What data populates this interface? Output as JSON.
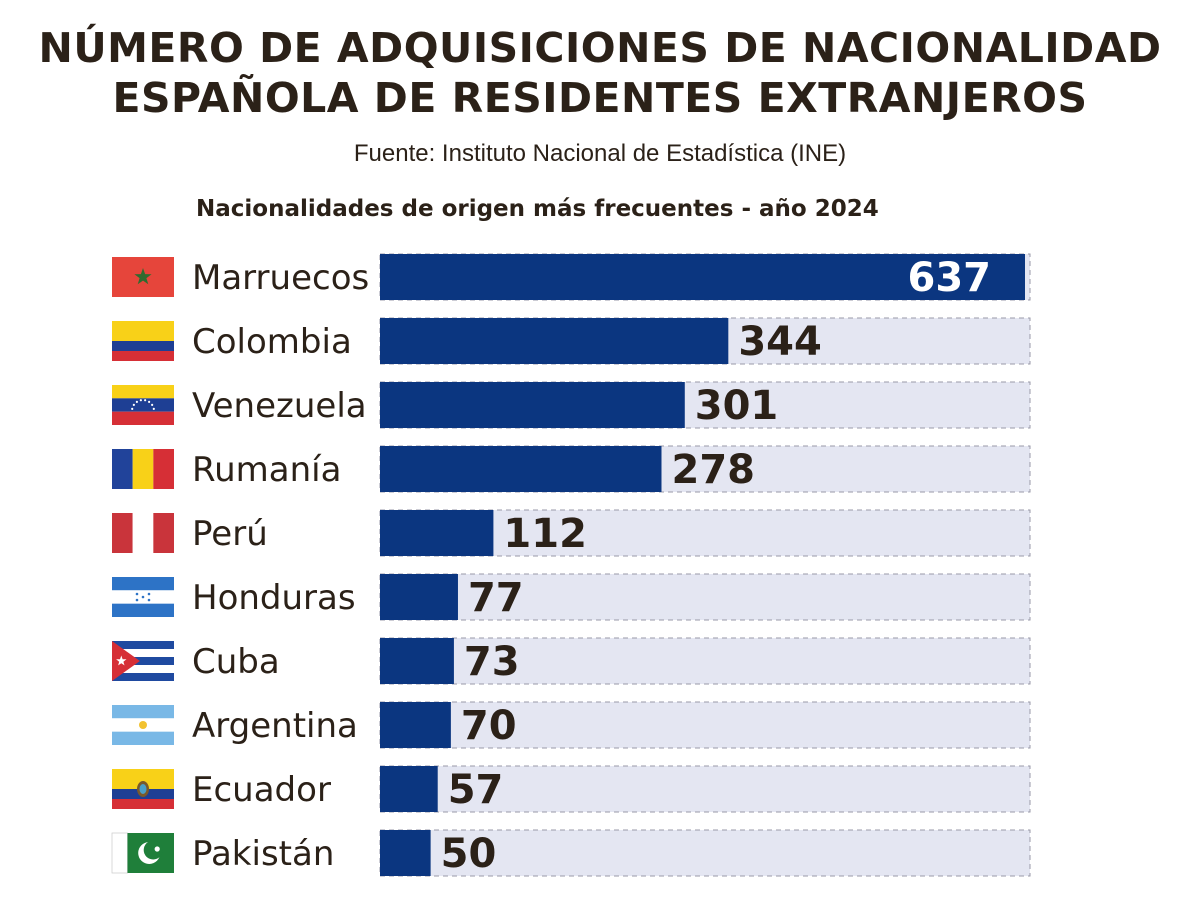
{
  "title_line1": "NÚMERO DE ADQUISICIONES DE NACIONALIDAD",
  "title_line2": "ESPAÑOLA DE RESIDENTES EXTRANJEROS",
  "source": "Fuente:  Instituto Nacional de Estadística (INE)",
  "chart_data": {
    "type": "bar",
    "orientation": "horizontal",
    "title": "Nacionalidades de origen más frecuentes - año 2024",
    "categories": [
      "Marruecos",
      "Colombia",
      "Venezuela",
      "Rumanía",
      "Perú",
      "Honduras",
      "Cuba",
      "Argentina",
      "Ecuador",
      "Pakistán"
    ],
    "values": [
      637,
      344,
      301,
      278,
      112,
      77,
      73,
      70,
      57,
      50
    ],
    "xlim": [
      0,
      637
    ],
    "xlabel": "",
    "ylabel": "",
    "grid": false,
    "legend": "none"
  },
  "colors": {
    "bar": "#0b3680",
    "track": "#e4e6f2",
    "track_dash": "#9a9aa8",
    "text": "#2b2118"
  },
  "flags": [
    {
      "country": "Marruecos",
      "icon": "morocco-flag-icon"
    },
    {
      "country": "Colombia",
      "icon": "colombia-flag-icon"
    },
    {
      "country": "Venezuela",
      "icon": "venezuela-flag-icon"
    },
    {
      "country": "Rumanía",
      "icon": "romania-flag-icon"
    },
    {
      "country": "Perú",
      "icon": "peru-flag-icon"
    },
    {
      "country": "Honduras",
      "icon": "honduras-flag-icon"
    },
    {
      "country": "Cuba",
      "icon": "cuba-flag-icon"
    },
    {
      "country": "Argentina",
      "icon": "argentina-flag-icon"
    },
    {
      "country": "Ecuador",
      "icon": "ecuador-flag-icon"
    },
    {
      "country": "Pakistán",
      "icon": "pakistan-flag-icon"
    }
  ]
}
